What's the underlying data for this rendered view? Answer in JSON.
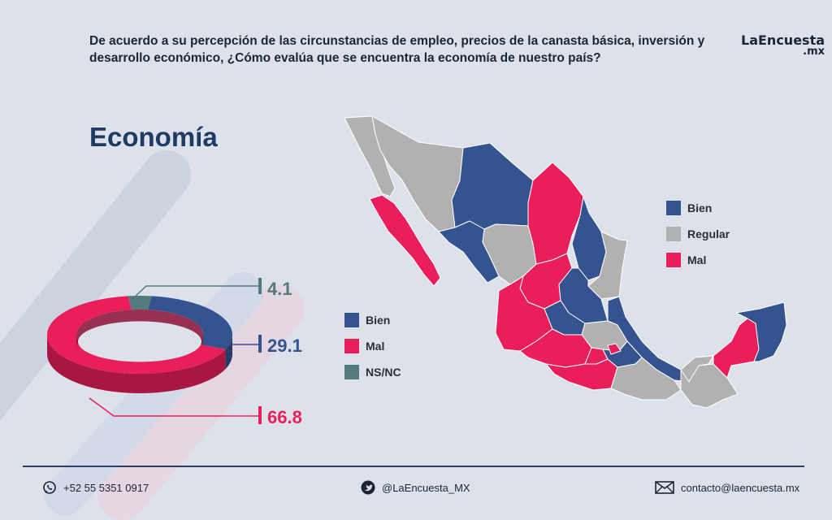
{
  "question": "De acuerdo a su percepción de las circunstancias de empleo, precios de la canasta básica, inversión y desarrollo económico, ¿Cómo evalúa que se encuentra la economía de nuestro país?",
  "brand": {
    "name": "LaEncuesta",
    "suffix": ".mx"
  },
  "colors": {
    "bien": "#34538f",
    "mal": "#ea1e5a",
    "nsnc": "#557a7e",
    "regular": "#b1b1b1",
    "text": "#1d2433"
  },
  "chart_data": {
    "type": "pie",
    "title": "Economía",
    "slices": [
      {
        "name": "Bien",
        "value": 29.1,
        "label": "29.1"
      },
      {
        "name": "Mal",
        "value": 66.8,
        "label": "66.8"
      },
      {
        "name": "NS/NC",
        "value": 4.1,
        "label": "4.1"
      }
    ]
  },
  "donut_legend": [
    {
      "label": "Bien",
      "color": "#34538f"
    },
    {
      "label": "Mal",
      "color": "#ea1e5a"
    },
    {
      "label": "NS/NC",
      "color": "#557a7e"
    }
  ],
  "map_legend": [
    {
      "label": "Bien",
      "color": "#34538f"
    },
    {
      "label": "Regular",
      "color": "#b1b1b1"
    },
    {
      "label": "Mal",
      "color": "#ea1e5a"
    }
  ],
  "footer": {
    "phone": "+52 55 5351 0917",
    "twitter": "@LaEncuesta_MX",
    "email": "contacto@laencuesta.mx"
  }
}
